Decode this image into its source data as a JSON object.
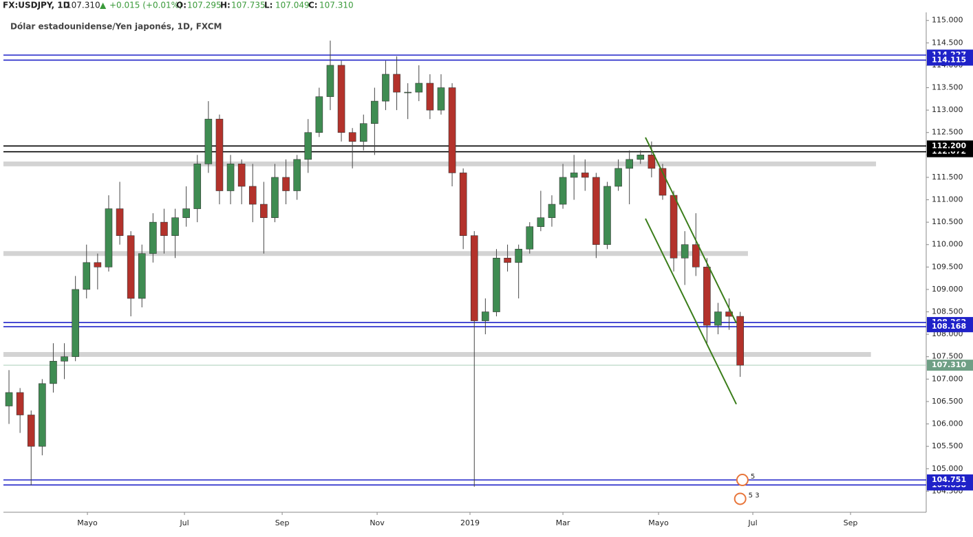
{
  "chart_data": {
    "type": "candlestick",
    "header": {
      "symbol": "FX:USDJPY, 1D",
      "last": "107.310",
      "arrow": "▲",
      "change": "+0.015 (+0.01%)",
      "ohlc": [
        {
          "key": "O:",
          "value": "107.295"
        },
        {
          "key": "H:",
          "value": "107.735"
        },
        {
          "key": "L:",
          "value": "107.049"
        },
        {
          "key": "C:",
          "value": "107.310"
        }
      ]
    },
    "title": "Dólar estadounidense/Yen japonés, 1D, FXCM",
    "up_color": "#3f8c52",
    "down_color": "#b3322b",
    "wick_color": "#444",
    "candles": [
      [
        106.4,
        107.2,
        106.0,
        106.7
      ],
      [
        106.7,
        106.8,
        105.8,
        106.2
      ],
      [
        106.2,
        106.3,
        104.63,
        105.5
      ],
      [
        105.5,
        107.0,
        105.3,
        106.9
      ],
      [
        106.9,
        107.8,
        106.7,
        107.4
      ],
      [
        107.4,
        107.8,
        107.0,
        107.5
      ],
      [
        107.5,
        109.3,
        107.4,
        109.0
      ],
      [
        109.0,
        110.0,
        108.8,
        109.6
      ],
      [
        109.6,
        109.8,
        109.0,
        109.5
      ],
      [
        109.5,
        111.1,
        109.4,
        110.8
      ],
      [
        110.8,
        111.4,
        110.0,
        110.2
      ],
      [
        110.2,
        110.3,
        108.4,
        108.8
      ],
      [
        108.8,
        110.0,
        108.6,
        109.8
      ],
      [
        109.8,
        110.7,
        109.6,
        110.5
      ],
      [
        110.5,
        110.8,
        109.8,
        110.2
      ],
      [
        110.2,
        110.8,
        109.7,
        110.6
      ],
      [
        110.6,
        111.3,
        110.4,
        110.8
      ],
      [
        110.8,
        112.0,
        110.5,
        111.8
      ],
      [
        111.8,
        113.2,
        111.6,
        112.8
      ],
      [
        112.8,
        112.9,
        110.9,
        111.2
      ],
      [
        111.2,
        112.0,
        110.9,
        111.8
      ],
      [
        111.8,
        111.9,
        110.9,
        111.3
      ],
      [
        111.3,
        111.8,
        110.5,
        110.9
      ],
      [
        110.9,
        111.4,
        109.8,
        110.6
      ],
      [
        110.6,
        111.8,
        110.5,
        111.5
      ],
      [
        111.5,
        111.9,
        110.9,
        111.2
      ],
      [
        111.2,
        112.0,
        111.0,
        111.9
      ],
      [
        111.9,
        112.8,
        111.6,
        112.5
      ],
      [
        112.5,
        113.5,
        112.4,
        113.3
      ],
      [
        113.3,
        114.55,
        113.0,
        114.0
      ],
      [
        114.0,
        114.1,
        112.3,
        112.5
      ],
      [
        112.5,
        112.6,
        111.7,
        112.3
      ],
      [
        112.3,
        112.9,
        112.1,
        112.7
      ],
      [
        112.7,
        113.5,
        112.0,
        113.2
      ],
      [
        113.2,
        114.1,
        113.0,
        113.8
      ],
      [
        113.8,
        114.2,
        113.0,
        113.4
      ],
      [
        113.4,
        113.6,
        112.8,
        113.4
      ],
      [
        113.4,
        114.0,
        113.2,
        113.6
      ],
      [
        113.6,
        113.8,
        112.8,
        113.0
      ],
      [
        113.0,
        113.8,
        112.9,
        113.5
      ],
      [
        113.5,
        113.6,
        111.3,
        111.6
      ],
      [
        111.6,
        111.7,
        109.9,
        110.2
      ],
      [
        110.2,
        110.3,
        104.6,
        108.3
      ],
      [
        108.3,
        108.8,
        108.0,
        108.5
      ],
      [
        108.5,
        109.9,
        108.4,
        109.7
      ],
      [
        109.7,
        110.0,
        109.4,
        109.6
      ],
      [
        109.6,
        110.0,
        108.8,
        109.9
      ],
      [
        109.9,
        110.5,
        109.8,
        110.4
      ],
      [
        110.4,
        111.2,
        110.3,
        110.6
      ],
      [
        110.6,
        111.1,
        110.4,
        110.9
      ],
      [
        110.9,
        111.8,
        110.8,
        111.5
      ],
      [
        111.5,
        112.0,
        111.0,
        111.6
      ],
      [
        111.6,
        111.9,
        111.2,
        111.5
      ],
      [
        111.5,
        111.6,
        109.7,
        110.0
      ],
      [
        110.0,
        111.4,
        109.9,
        111.3
      ],
      [
        111.3,
        111.9,
        111.2,
        111.7
      ],
      [
        111.7,
        112.1,
        110.9,
        111.9
      ],
      [
        111.9,
        112.1,
        111.8,
        112.0
      ],
      [
        112.0,
        112.3,
        111.5,
        111.7
      ],
      [
        111.7,
        111.8,
        111.0,
        111.1
      ],
      [
        111.1,
        111.2,
        109.4,
        109.7
      ],
      [
        109.7,
        110.3,
        109.1,
        110.0
      ],
      [
        110.0,
        110.7,
        109.3,
        109.5
      ],
      [
        109.5,
        109.7,
        107.8,
        108.2
      ],
      [
        108.2,
        108.7,
        108.0,
        108.5
      ],
      [
        108.5,
        108.8,
        108.1,
        108.4
      ],
      [
        108.4,
        108.5,
        107.05,
        107.31
      ]
    ],
    "xlim": [
      0,
      83.29
    ],
    "xticks": [
      {
        "value": 7.58,
        "label": "Mayo"
      },
      {
        "value": 16.34,
        "label": "Jul"
      },
      {
        "value": 25.16,
        "label": "Sep"
      },
      {
        "value": 33.73,
        "label": "Nov"
      },
      {
        "value": 42.11,
        "label": "2019"
      },
      {
        "value": 50.5,
        "label": "Mar"
      },
      {
        "value": 59.13,
        "label": "Mayo"
      },
      {
        "value": 67.64,
        "label": "Jul"
      },
      {
        "value": 76.46,
        "label": "Sep"
      }
    ],
    "ylim": [
      104.03,
      115.18
    ],
    "yticks": [
      {
        "value": 104.5,
        "label": "104.500"
      },
      {
        "value": 105,
        "label": "105.000"
      },
      {
        "value": 105.5,
        "label": "105.500"
      },
      {
        "value": 106,
        "label": "106.000"
      },
      {
        "value": 106.5,
        "label": "106.500"
      },
      {
        "value": 107,
        "label": "107.000"
      },
      {
        "value": 107.5,
        "label": "107.500"
      },
      {
        "value": 108,
        "label": "108.000"
      },
      {
        "value": 108.5,
        "label": "108.500"
      },
      {
        "value": 109,
        "label": "109.000"
      },
      {
        "value": 109.5,
        "label": "109.500"
      },
      {
        "value": 110,
        "label": "110.000"
      },
      {
        "value": 110.5,
        "label": "110.500"
      },
      {
        "value": 111,
        "label": "111.000"
      },
      {
        "value": 111.5,
        "label": "111.500"
      },
      {
        "value": 112,
        "label": "112.000"
      },
      {
        "value": 112.5,
        "label": "112.500"
      },
      {
        "value": 113,
        "label": "113.000"
      },
      {
        "value": 113.5,
        "label": "113.500"
      },
      {
        "value": 114,
        "label": "114.000"
      },
      {
        "value": 114.5,
        "label": "114.500"
      },
      {
        "value": 115,
        "label": "115.000"
      }
    ],
    "zones": [
      {
        "value": 111.8,
        "end": 78.76
      },
      {
        "value": 109.8,
        "end": 67.2
      },
      {
        "value": 107.55,
        "end": 78.3
      }
    ],
    "zone_color": "#d3d3d3",
    "levels": [
      {
        "value": 114.227,
        "label": "114.227",
        "color": "#1f22c8"
      },
      {
        "value": 112.072,
        "label": "112.072",
        "color": "#000000"
      },
      {
        "value": 104.638,
        "label": "104.638",
        "color": "#1f22c8"
      },
      {
        "value": 114.115,
        "label": "114.115",
        "color": "#1f22c8"
      },
      {
        "value": 112.2,
        "label": "112.200",
        "color": "#000000"
      },
      {
        "value": 108.262,
        "label": "108.262",
        "color": "#1f22c8"
      },
      {
        "value": 108.168,
        "label": "108.168",
        "color": "#1f22c8"
      },
      {
        "value": 104.751,
        "label": "104.751",
        "color": "#1f22c8"
      }
    ],
    "trendlines": [
      {
        "x": [
          57.95,
          66.15
        ],
        "y": [
          112.39,
          108.25
        ]
      },
      {
        "x": [
          57.95,
          66.15
        ],
        "y": [
          110.58,
          106.44
        ]
      }
    ],
    "trend_color": "#3a7d1a",
    "current": {
      "value": 107.31,
      "label": "107.310",
      "color": "#6f9f85"
    },
    "events": [
      {
        "label": "5",
        "x": 66.7,
        "y": 104.75
      },
      {
        "label": "5 3",
        "x": 66.5,
        "y": 104.33
      }
    ]
  }
}
